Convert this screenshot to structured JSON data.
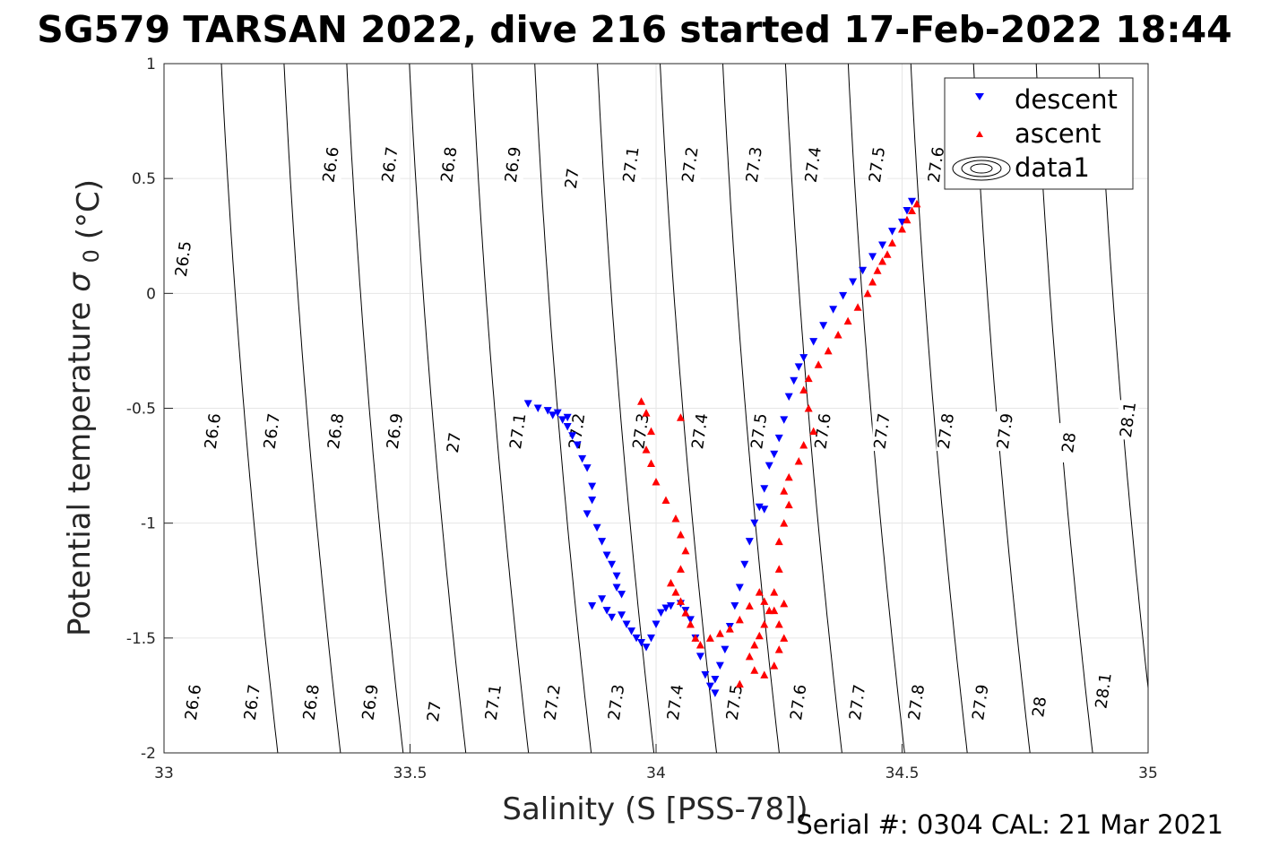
{
  "title": "SG579 TARSAN 2022, dive 216 started 17-Feb-2022 18:44",
  "footer": "Serial #: 0304  CAL: 21 Mar 2021",
  "chart_data": {
    "type": "scatter",
    "xlabel": "Salinity (S [PSS-78])",
    "ylabel": "Potential temperature",
    "ylabel_symbol": "σ",
    "ylabel_subscript": "0",
    "ylabel_unit": "(°C)",
    "xlim": [
      33,
      35
    ],
    "ylim": [
      -2,
      1
    ],
    "xticks": [
      33,
      33.5,
      34,
      34.5,
      35
    ],
    "xtick_labels": [
      "33",
      "33.5",
      "34",
      "34.5",
      "35"
    ],
    "yticks": [
      -2,
      -1.5,
      -1,
      -0.5,
      0,
      0.5,
      1
    ],
    "ytick_labels": [
      "-2",
      "-1.5",
      "-1",
      "-0.5",
      "0",
      "0.5",
      "1"
    ],
    "grid": true,
    "legend_position": "top-right",
    "legend": [
      {
        "label": "descent",
        "marker": "triangle-down",
        "color": "#0000ff"
      },
      {
        "label": "ascent",
        "marker": "triangle-up",
        "color": "#ff0000"
      },
      {
        "label": "data1",
        "marker": "contour",
        "color": "#000000"
      }
    ],
    "contour_levels": [
      26.5,
      26.6,
      26.7,
      26.8,
      26.9,
      27.0,
      27.1,
      27.2,
      27.3,
      27.4,
      27.5,
      27.6,
      27.7,
      27.8,
      27.9,
      28.0,
      28.1
    ],
    "contour_labels": [
      {
        "text": "26.5",
        "s": 33.04,
        "t": 0.15
      },
      {
        "text": "26.6",
        "s": 33.34,
        "t": 0.56
      },
      {
        "text": "26.7",
        "s": 33.46,
        "t": 0.56
      },
      {
        "text": "26.8",
        "s": 33.58,
        "t": 0.56
      },
      {
        "text": "26.9",
        "s": 33.71,
        "t": 0.56
      },
      {
        "text": "27",
        "s": 33.83,
        "t": 0.5
      },
      {
        "text": "27.1",
        "s": 33.95,
        "t": 0.56
      },
      {
        "text": "27.2",
        "s": 34.07,
        "t": 0.56
      },
      {
        "text": "27.3",
        "s": 34.2,
        "t": 0.56
      },
      {
        "text": "27.4",
        "s": 34.32,
        "t": 0.56
      },
      {
        "text": "27.5",
        "s": 34.45,
        "t": 0.56
      },
      {
        "text": "27.6",
        "s": 34.57,
        "t": 0.56
      },
      {
        "text": "27.7",
        "s": 34.69,
        "t": 0.56
      },
      {
        "text": "26.6",
        "s": 33.1,
        "t": -0.6
      },
      {
        "text": "26.7",
        "s": 33.22,
        "t": -0.6
      },
      {
        "text": "26.8",
        "s": 33.35,
        "t": -0.6
      },
      {
        "text": "26.9",
        "s": 33.47,
        "t": -0.6
      },
      {
        "text": "27",
        "s": 33.59,
        "t": -0.65
      },
      {
        "text": "27.1",
        "s": 33.72,
        "t": -0.6
      },
      {
        "text": "27.2",
        "s": 33.84,
        "t": -0.6
      },
      {
        "text": "27.3",
        "s": 33.97,
        "t": -0.6
      },
      {
        "text": "27.4",
        "s": 34.09,
        "t": -0.6
      },
      {
        "text": "27.5",
        "s": 34.21,
        "t": -0.6
      },
      {
        "text": "27.6",
        "s": 34.34,
        "t": -0.6
      },
      {
        "text": "27.7",
        "s": 34.46,
        "t": -0.6
      },
      {
        "text": "27.8",
        "s": 34.59,
        "t": -0.6
      },
      {
        "text": "27.9",
        "s": 34.71,
        "t": -0.6
      },
      {
        "text": "28",
        "s": 34.84,
        "t": -0.65
      },
      {
        "text": "28.1",
        "s": 34.96,
        "t": -0.55
      },
      {
        "text": "26.6",
        "s": 33.06,
        "t": -1.78
      },
      {
        "text": "26.7",
        "s": 33.18,
        "t": -1.78
      },
      {
        "text": "26.8",
        "s": 33.3,
        "t": -1.78
      },
      {
        "text": "26.9",
        "s": 33.42,
        "t": -1.78
      },
      {
        "text": "27",
        "s": 33.55,
        "t": -1.82
      },
      {
        "text": "27.1",
        "s": 33.67,
        "t": -1.78
      },
      {
        "text": "27.2",
        "s": 33.79,
        "t": -1.78
      },
      {
        "text": "27.3",
        "s": 33.92,
        "t": -1.78
      },
      {
        "text": "27.4",
        "s": 34.04,
        "t": -1.78
      },
      {
        "text": "27.5",
        "s": 34.16,
        "t": -1.78
      },
      {
        "text": "27.6",
        "s": 34.29,
        "t": -1.78
      },
      {
        "text": "27.7",
        "s": 34.41,
        "t": -1.78
      },
      {
        "text": "27.8",
        "s": 34.53,
        "t": -1.78
      },
      {
        "text": "27.9",
        "s": 34.66,
        "t": -1.78
      },
      {
        "text": "28",
        "s": 34.78,
        "t": -1.8
      },
      {
        "text": "28.1",
        "s": 34.91,
        "t": -1.73
      }
    ],
    "series": [
      {
        "name": "descent",
        "color": "#0000ff",
        "marker": "triangle-down",
        "points": [
          [
            33.74,
            -0.48
          ],
          [
            33.76,
            -0.5
          ],
          [
            33.78,
            -0.51
          ],
          [
            33.79,
            -0.53
          ],
          [
            33.8,
            -0.52
          ],
          [
            33.81,
            -0.55
          ],
          [
            33.82,
            -0.54
          ],
          [
            33.82,
            -0.58
          ],
          [
            33.83,
            -0.62
          ],
          [
            33.84,
            -0.66
          ],
          [
            33.85,
            -0.72
          ],
          [
            33.86,
            -0.76
          ],
          [
            33.87,
            -0.84
          ],
          [
            33.87,
            -0.9
          ],
          [
            33.86,
            -0.96
          ],
          [
            33.88,
            -1.02
          ],
          [
            33.89,
            -1.08
          ],
          [
            33.9,
            -1.14
          ],
          [
            33.91,
            -1.18
          ],
          [
            33.92,
            -1.23
          ],
          [
            33.92,
            -1.28
          ],
          [
            33.93,
            -1.31
          ],
          [
            33.87,
            -1.36
          ],
          [
            33.89,
            -1.33
          ],
          [
            33.9,
            -1.38
          ],
          [
            33.91,
            -1.41
          ],
          [
            33.93,
            -1.4
          ],
          [
            33.94,
            -1.44
          ],
          [
            33.95,
            -1.47
          ],
          [
            33.96,
            -1.5
          ],
          [
            33.97,
            -1.52
          ],
          [
            33.98,
            -1.54
          ],
          [
            33.99,
            -1.5
          ],
          [
            34.0,
            -1.44
          ],
          [
            34.01,
            -1.39
          ],
          [
            34.02,
            -1.37
          ],
          [
            34.03,
            -1.36
          ],
          [
            34.05,
            -1.35
          ],
          [
            34.06,
            -1.38
          ],
          [
            34.07,
            -1.42
          ],
          [
            34.08,
            -1.5
          ],
          [
            34.09,
            -1.58
          ],
          [
            34.1,
            -1.66
          ],
          [
            34.11,
            -1.71
          ],
          [
            34.12,
            -1.74
          ],
          [
            34.12,
            -1.68
          ],
          [
            34.13,
            -1.62
          ],
          [
            34.14,
            -1.55
          ],
          [
            34.15,
            -1.45
          ],
          [
            34.16,
            -1.36
          ],
          [
            34.17,
            -1.28
          ],
          [
            34.18,
            -1.18
          ],
          [
            34.19,
            -1.08
          ],
          [
            34.2,
            -1.0
          ],
          [
            34.21,
            -0.93
          ],
          [
            34.22,
            -0.85
          ],
          [
            34.23,
            -0.75
          ],
          [
            34.24,
            -0.7
          ],
          [
            34.25,
            -0.63
          ],
          [
            34.26,
            -0.55
          ],
          [
            34.27,
            -0.45
          ],
          [
            34.28,
            -0.38
          ],
          [
            34.29,
            -0.32
          ],
          [
            34.3,
            -0.28
          ],
          [
            34.32,
            -0.21
          ],
          [
            34.34,
            -0.14
          ],
          [
            34.36,
            -0.07
          ],
          [
            34.38,
            -0.01
          ],
          [
            34.4,
            0.05
          ],
          [
            34.42,
            0.1
          ],
          [
            34.44,
            0.16
          ],
          [
            34.46,
            0.21
          ],
          [
            34.48,
            0.27
          ],
          [
            34.5,
            0.31
          ],
          [
            34.51,
            0.36
          ],
          [
            34.52,
            0.4
          ],
          [
            34.22,
            -0.94
          ]
        ]
      },
      {
        "name": "ascent",
        "color": "#ff0000",
        "marker": "triangle-up",
        "points": [
          [
            34.53,
            0.39
          ],
          [
            34.52,
            0.36
          ],
          [
            34.51,
            0.32
          ],
          [
            34.5,
            0.28
          ],
          [
            34.48,
            0.22
          ],
          [
            34.47,
            0.17
          ],
          [
            34.46,
            0.14
          ],
          [
            34.45,
            0.1
          ],
          [
            34.44,
            0.05
          ],
          [
            34.43,
            0.0
          ],
          [
            34.41,
            -0.06
          ],
          [
            34.39,
            -0.12
          ],
          [
            34.37,
            -0.18
          ],
          [
            34.35,
            -0.25
          ],
          [
            34.33,
            -0.31
          ],
          [
            34.31,
            -0.37
          ],
          [
            34.3,
            -0.42
          ],
          [
            34.31,
            -0.5
          ],
          [
            34.32,
            -0.6
          ],
          [
            34.3,
            -0.66
          ],
          [
            34.29,
            -0.73
          ],
          [
            34.27,
            -0.8
          ],
          [
            34.26,
            -0.86
          ],
          [
            34.27,
            -0.92
          ],
          [
            34.26,
            -1.0
          ],
          [
            34.25,
            -1.08
          ],
          [
            34.25,
            -1.2
          ],
          [
            34.24,
            -1.3
          ],
          [
            34.23,
            -1.38
          ],
          [
            34.22,
            -1.44
          ],
          [
            34.21,
            -1.49
          ],
          [
            34.2,
            -1.53
          ],
          [
            34.19,
            -1.58
          ],
          [
            34.2,
            -1.64
          ],
          [
            34.22,
            -1.66
          ],
          [
            34.24,
            -1.62
          ],
          [
            34.25,
            -1.55
          ],
          [
            34.26,
            -1.5
          ],
          [
            34.25,
            -1.44
          ],
          [
            34.24,
            -1.38
          ],
          [
            34.22,
            -1.34
          ],
          [
            34.21,
            -1.3
          ],
          [
            34.19,
            -1.36
          ],
          [
            34.17,
            -1.42
          ],
          [
            34.15,
            -1.46
          ],
          [
            34.13,
            -1.48
          ],
          [
            34.11,
            -1.5
          ],
          [
            34.09,
            -1.53
          ],
          [
            34.08,
            -1.5
          ],
          [
            34.07,
            -1.44
          ],
          [
            34.06,
            -1.39
          ],
          [
            34.05,
            -1.34
          ],
          [
            34.04,
            -1.3
          ],
          [
            34.03,
            -1.26
          ],
          [
            34.05,
            -1.2
          ],
          [
            34.06,
            -1.12
          ],
          [
            34.05,
            -1.05
          ],
          [
            34.04,
            -0.98
          ],
          [
            34.02,
            -0.9
          ],
          [
            34.0,
            -0.82
          ],
          [
            33.99,
            -0.74
          ],
          [
            33.98,
            -0.68
          ],
          [
            33.99,
            -0.6
          ],
          [
            33.98,
            -0.52
          ],
          [
            33.97,
            -0.47
          ],
          [
            34.05,
            -0.54
          ],
          [
            34.17,
            -1.7
          ],
          [
            34.26,
            -1.35
          ]
        ]
      }
    ]
  }
}
